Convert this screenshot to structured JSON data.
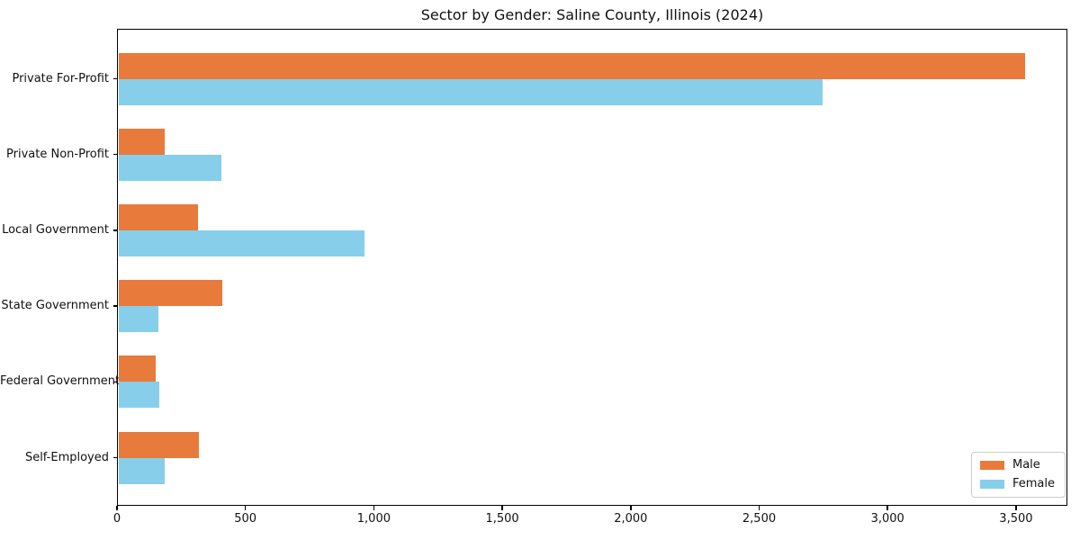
{
  "title": "Sector by Gender: Saline County, Illinois (2024)",
  "chart_data": {
    "type": "bar",
    "orientation": "horizontal",
    "title": "Sector by Gender: Saline County, Illinois (2024)",
    "categories": [
      "Private For-Profit",
      "Private Non-Profit",
      "Local Government",
      "State Government",
      "Federal Government",
      "Self-Employed"
    ],
    "series": [
      {
        "name": "Male",
        "color": "#e87a3c",
        "values": [
          3530,
          180,
          310,
          405,
          145,
          315
        ]
      },
      {
        "name": "Female",
        "color": "#87ceeb",
        "values": [
          2740,
          400,
          960,
          155,
          160,
          180
        ]
      }
    ],
    "xlabel": "",
    "ylabel": "",
    "xlim": [
      0,
      3700
    ],
    "xticks": [
      0,
      500,
      1000,
      1500,
      2000,
      2500,
      3000,
      3500
    ],
    "xtick_labels": [
      "0",
      "500",
      "1,000",
      "1,500",
      "2,000",
      "2,500",
      "3,000",
      "3,500"
    ],
    "grid": false,
    "legend": {
      "position": "lower right",
      "entries": [
        "Male",
        "Female"
      ]
    }
  }
}
